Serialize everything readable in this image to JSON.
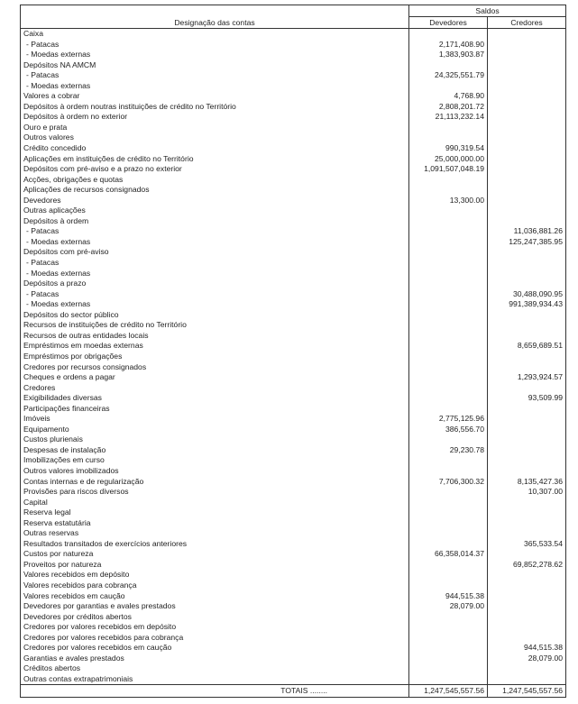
{
  "header": {
    "saldos": "Saldos",
    "designacao": "Designação das contas",
    "devedores": "Devedores",
    "credores": "Credores"
  },
  "rows": [
    {
      "label": "Caixa",
      "dev": "",
      "cred": ""
    },
    {
      "label": "- Patacas",
      "dev": "2,171,408.90",
      "cred": "",
      "indent": true
    },
    {
      "label": "- Moedas externas",
      "dev": "1,383,903.87",
      "cred": "",
      "indent": true
    },
    {
      "label": "Depósitos NA AMCM",
      "dev": "",
      "cred": ""
    },
    {
      "label": "- Patacas",
      "dev": "24,325,551.79",
      "cred": "",
      "indent": true
    },
    {
      "label": "- Moedas externas",
      "dev": "",
      "cred": "",
      "indent": true
    },
    {
      "label": "Valores a cobrar",
      "dev": "4,768.90",
      "cred": ""
    },
    {
      "label": "Depósitos à ordem noutras instituições de crédito no Território",
      "dev": "2,808,201.72",
      "cred": ""
    },
    {
      "label": "Depósitos à ordem no exterior",
      "dev": "21,113,232.14",
      "cred": ""
    },
    {
      "label": "Ouro e prata",
      "dev": "",
      "cred": ""
    },
    {
      "label": "Outros valores",
      "dev": "",
      "cred": ""
    },
    {
      "label": "Crédito concedido",
      "dev": "990,319.54",
      "cred": ""
    },
    {
      "label": "Aplicações em instituições de crédito no Território",
      "dev": "25,000,000.00",
      "cred": ""
    },
    {
      "label": "Depósitos com pré-aviso e a prazo no exterior",
      "dev": "1,091,507,048.19",
      "cred": ""
    },
    {
      "label": "Acções, obrigações e quotas",
      "dev": "",
      "cred": ""
    },
    {
      "label": "Aplicações de recursos consignados",
      "dev": "",
      "cred": ""
    },
    {
      "label": "Devedores",
      "dev": "13,300.00",
      "cred": ""
    },
    {
      "label": "Outras aplicações",
      "dev": "",
      "cred": ""
    },
    {
      "label": "Depósitos à ordem",
      "dev": "",
      "cred": ""
    },
    {
      "label": "- Patacas",
      "dev": "",
      "cred": "11,036,881.26",
      "indent": true
    },
    {
      "label": "- Moedas externas",
      "dev": "",
      "cred": "125,247,385.95",
      "indent": true
    },
    {
      "label": "Depósitos com pré-aviso",
      "dev": "",
      "cred": ""
    },
    {
      "label": "- Patacas",
      "dev": "",
      "cred": "",
      "indent": true
    },
    {
      "label": "- Moedas externas",
      "dev": "",
      "cred": "",
      "indent": true
    },
    {
      "label": "Depósitos a prazo",
      "dev": "",
      "cred": ""
    },
    {
      "label": "- Patacas",
      "dev": "",
      "cred": "30,488,090.95",
      "indent": true
    },
    {
      "label": "- Moedas externas",
      "dev": "",
      "cred": "991,389,934.43",
      "indent": true
    },
    {
      "label": "Depósitos do sector público",
      "dev": "",
      "cred": ""
    },
    {
      "label": "Recursos de instituições de crédito no Território",
      "dev": "",
      "cred": ""
    },
    {
      "label": "Recursos de outras entidades locais",
      "dev": "",
      "cred": ""
    },
    {
      "label": "Empréstimos em moedas externas",
      "dev": "",
      "cred": "8,659,689.51"
    },
    {
      "label": "Empréstimos por obrigações",
      "dev": "",
      "cred": ""
    },
    {
      "label": "Credores por recursos consignados",
      "dev": "",
      "cred": ""
    },
    {
      "label": "Cheques e ordens a pagar",
      "dev": "",
      "cred": "1,293,924.57"
    },
    {
      "label": "Credores",
      "dev": "",
      "cred": ""
    },
    {
      "label": "Exigibilidades diversas",
      "dev": "",
      "cred": "93,509.99"
    },
    {
      "label": "Participações financeiras",
      "dev": "",
      "cred": ""
    },
    {
      "label": "Imóveis",
      "dev": "2,775,125.96",
      "cred": ""
    },
    {
      "label": "Equipamento",
      "dev": "386,556.70",
      "cred": ""
    },
    {
      "label": "Custos plurienais",
      "dev": "",
      "cred": ""
    },
    {
      "label": "Despesas de instalação",
      "dev": "29,230.78",
      "cred": ""
    },
    {
      "label": "Imobilizações em curso",
      "dev": "",
      "cred": ""
    },
    {
      "label": "Outros valores imobilizados",
      "dev": "",
      "cred": ""
    },
    {
      "label": "Contas internas e de regularização",
      "dev": "7,706,300.32",
      "cred": "8,135,427.36"
    },
    {
      "label": "Provisões para riscos diversos",
      "dev": "",
      "cred": "10,307.00"
    },
    {
      "label": "Capital",
      "dev": "",
      "cred": ""
    },
    {
      "label": "Reserva legal",
      "dev": "",
      "cred": ""
    },
    {
      "label": "Reserva estatutária",
      "dev": "",
      "cred": ""
    },
    {
      "label": "Outras reservas",
      "dev": "",
      "cred": ""
    },
    {
      "label": "Resultados transitados de exercícios anteriores",
      "dev": "",
      "cred": "365,533.54"
    },
    {
      "label": "Custos por natureza",
      "dev": "66,358,014.37",
      "cred": ""
    },
    {
      "label": "Proveitos por natureza",
      "dev": "",
      "cred": "69,852,278.62"
    },
    {
      "label": "Valores recebidos em depósito",
      "dev": "",
      "cred": ""
    },
    {
      "label": "Valores recebidos para cobrança",
      "dev": "",
      "cred": ""
    },
    {
      "label": "Valores recebidos em caução",
      "dev": "944,515.38",
      "cred": ""
    },
    {
      "label": "Devedores por garantias e avales prestados",
      "dev": "28,079.00",
      "cred": ""
    },
    {
      "label": "Devedores por créditos abertos",
      "dev": "",
      "cred": ""
    },
    {
      "label": "Credores por valores recebidos em depósito",
      "dev": "",
      "cred": ""
    },
    {
      "label": "Credores por valores recebidos para cobrança",
      "dev": "",
      "cred": ""
    },
    {
      "label": "Credores por valores recebidos em caução",
      "dev": "",
      "cred": "944,515.38"
    },
    {
      "label": "Garantias e avales prestados",
      "dev": "",
      "cred": "28,079.00"
    },
    {
      "label": "Créditos abertos",
      "dev": "",
      "cred": ""
    },
    {
      "label": "Outras contas extrapatrimoniais",
      "dev": "",
      "cred": ""
    }
  ],
  "totals": {
    "label": "TOTAIS ........",
    "dev": "1,247,545,557.56",
    "cred": "1,247,545,557.56"
  }
}
